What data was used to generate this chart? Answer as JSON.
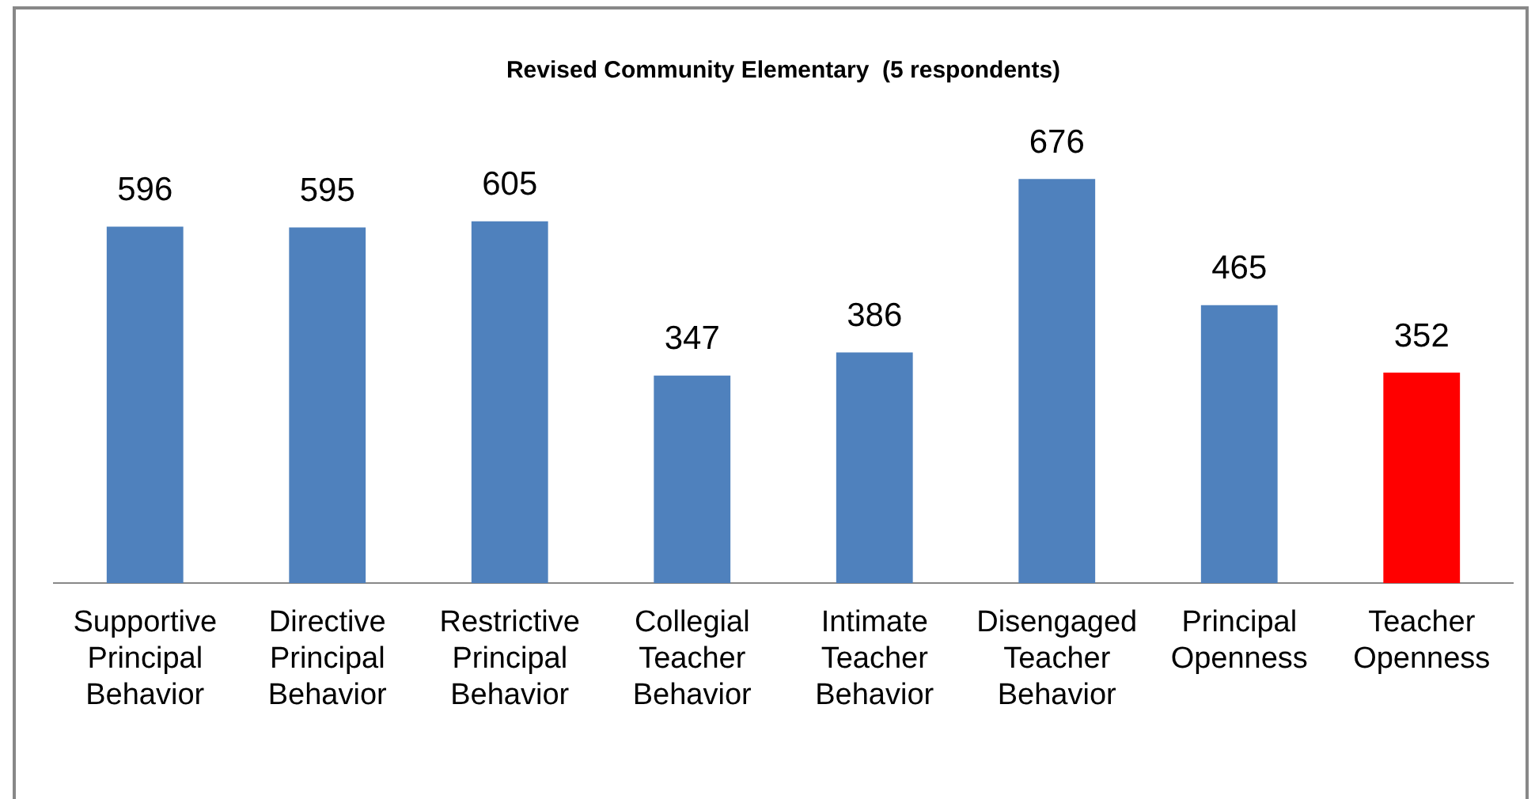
{
  "chart_data": {
    "type": "bar",
    "title": "Revised Community Elementary  (5 respondents)",
    "categories": [
      "Supportive Principal Behavior",
      "Directive Principal Behavior",
      "Restrictive Principal Behavior",
      "Collegial Teacher Behavior",
      "Intimate Teacher Behavior",
      "Disengaged Teacher Behavior",
      "Principal Openness",
      "Teacher Openness"
    ],
    "values": [
      596,
      595,
      605,
      347,
      386,
      676,
      465,
      352
    ],
    "colors": [
      "#4f81bd",
      "#4f81bd",
      "#4f81bd",
      "#4f81bd",
      "#4f81bd",
      "#4f81bd",
      "#4f81bd",
      "#ff0000"
    ],
    "data_labels": true,
    "legend": false,
    "grid": false,
    "tick_labels": "x"
  }
}
